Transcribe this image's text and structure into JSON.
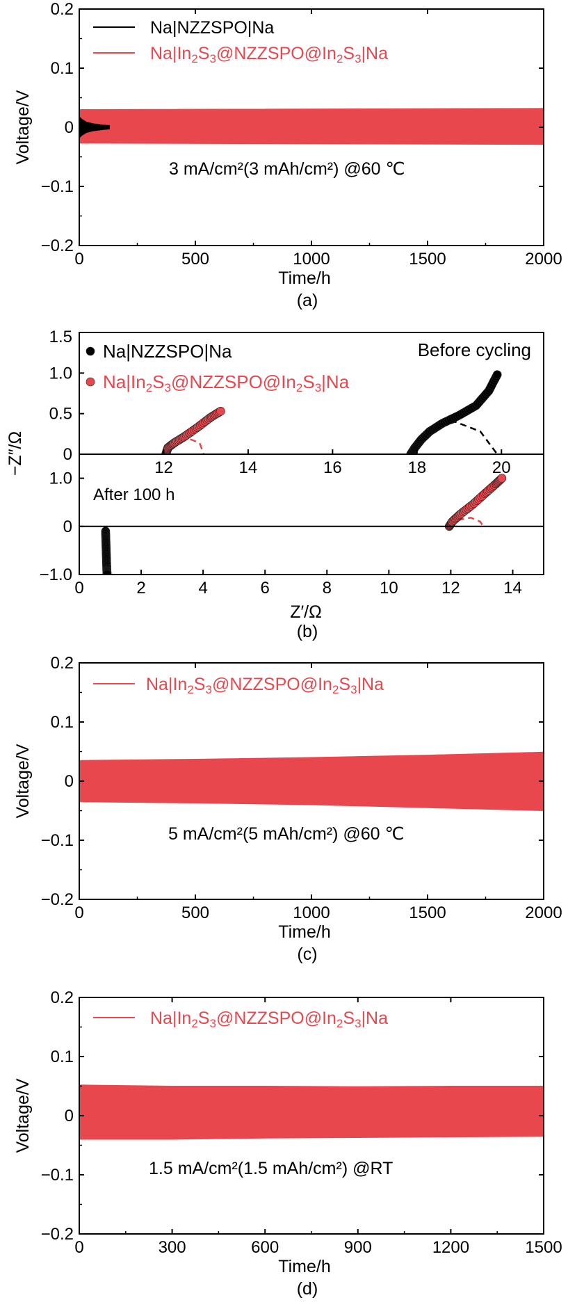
{
  "colors": {
    "black_series": "#000000",
    "red_series": "#e8474d",
    "axis": "#000000"
  },
  "chart_data": [
    {
      "panel": "(a)",
      "type": "line",
      "xlabel": "Time/h",
      "ylabel": "Voltage/V",
      "xlim": [
        0,
        2000
      ],
      "ylim": [
        -0.2,
        0.2
      ],
      "xticks": [
        0,
        500,
        1000,
        1500,
        2000
      ],
      "yticks": [
        0.2,
        0.1,
        0,
        -0.1,
        -0.2
      ],
      "ytick_labels": [
        "0.2",
        "0.1",
        "0",
        "−0.1",
        "−0.2"
      ],
      "annotation": "3 mA/cm²(3 mAh/cm²) @60 ℃",
      "series": [
        {
          "name": "Na|NZZSPO|Na",
          "color": "#000000",
          "envelope": {
            "t": [
              0,
              10,
              30,
              60,
              100,
              130
            ],
            "upper": [
              0.018,
              0.014,
              0.009,
              0.006,
              0.004,
              0.003
            ],
            "lower": [
              -0.018,
              -0.014,
              -0.009,
              -0.006,
              -0.004,
              -0.003
            ]
          }
        },
        {
          "name": "Na|In₂S₃@NZZSPO@In₂S₃|Na",
          "color": "#e8474d",
          "envelope": {
            "t": [
              0,
              2000
            ],
            "upper": [
              0.03,
              0.032
            ],
            "lower": [
              -0.027,
              -0.029
            ]
          }
        }
      ]
    },
    {
      "panel": "(b)",
      "type": "scatter",
      "xlabel": "Z′/Ω",
      "ylabel": "−Z″/Ω",
      "top": {
        "label": "Before cycling",
        "xlim": [
          10,
          21
        ],
        "ylim": [
          0,
          1.5
        ],
        "xticks": [
          12,
          14,
          16,
          18,
          20
        ],
        "yticks": [
          1.5,
          1.0,
          0.5,
          0
        ],
        "ytick_labels": [
          "1.5",
          "1.0",
          "0.5",
          "0"
        ],
        "series": [
          {
            "name": "Na|NZZSPO|Na",
            "color": "#000000",
            "points": [
              [
                17.85,
                0.0
              ],
              [
                17.95,
                0.08
              ],
              [
                18.1,
                0.18
              ],
              [
                18.3,
                0.28
              ],
              [
                18.6,
                0.38
              ],
              [
                19.0,
                0.48
              ],
              [
                19.4,
                0.6
              ],
              [
                19.7,
                0.78
              ],
              [
                19.9,
                0.98
              ]
            ],
            "fit": [
              [
                17.85,
                0.0
              ],
              [
                18.3,
                0.28
              ],
              [
                18.9,
                0.4
              ],
              [
                19.5,
                0.28
              ],
              [
                19.9,
                0.0
              ]
            ]
          },
          {
            "name": "Na|In₂S₃@NZZSPO@In₂S₃|Na",
            "color": "#e8474d",
            "points": [
              [
                12.05,
                0.0
              ],
              [
                12.1,
                0.08
              ],
              [
                12.25,
                0.14
              ],
              [
                12.5,
                0.22
              ],
              [
                12.8,
                0.33
              ],
              [
                13.1,
                0.45
              ],
              [
                13.35,
                0.53
              ]
            ],
            "fit": [
              [
                12.05,
                0.0
              ],
              [
                12.3,
                0.16
              ],
              [
                12.55,
                0.2
              ],
              [
                12.85,
                0.14
              ],
              [
                12.95,
                0.0
              ]
            ]
          }
        ]
      },
      "bottom": {
        "label": "After 100 h",
        "xlim": [
          0,
          15
        ],
        "ylim": [
          -1.0,
          1.5
        ],
        "xticks": [
          0,
          2,
          4,
          6,
          8,
          10,
          12,
          14
        ],
        "yticks": [
          1.0,
          0,
          -1.0
        ],
        "ytick_labels": [
          "1.0",
          "0",
          "−1.0"
        ],
        "series": [
          {
            "name": "Na|NZZSPO|Na",
            "color": "#000000",
            "points": [
              [
                0.85,
                -0.1
              ],
              [
                0.86,
                -0.3
              ],
              [
                0.87,
                -0.5
              ],
              [
                0.88,
                -0.7
              ],
              [
                0.89,
                -0.9
              ],
              [
                0.9,
                -1.0
              ]
            ],
            "fit": []
          },
          {
            "name": "Na|In₂S₃@NZZSPO@In₂S₃|Na",
            "color": "#e8474d",
            "points": [
              [
                11.95,
                0.0
              ],
              [
                12.05,
                0.1
              ],
              [
                12.3,
                0.25
              ],
              [
                12.7,
                0.45
              ],
              [
                13.1,
                0.68
              ],
              [
                13.45,
                0.88
              ],
              [
                13.65,
                1.0
              ]
            ],
            "fit": [
              [
                11.95,
                0.0
              ],
              [
                12.3,
                0.14
              ],
              [
                12.65,
                0.18
              ],
              [
                12.95,
                0.1
              ],
              [
                13.05,
                0.0
              ]
            ]
          }
        ]
      }
    },
    {
      "panel": "(c)",
      "type": "line",
      "xlabel": "Time/h",
      "ylabel": "Voltage/V",
      "xlim": [
        0,
        2000
      ],
      "ylim": [
        -0.2,
        0.2
      ],
      "xticks": [
        0,
        500,
        1000,
        1500,
        2000
      ],
      "yticks": [
        0.2,
        0.1,
        0,
        -0.1,
        -0.2
      ],
      "ytick_labels": [
        "0.2",
        "0.1",
        "0",
        "−0.1",
        "−0.2"
      ],
      "annotation": "5 mA/cm²(5 mAh/cm²) @60 ℃",
      "series": [
        {
          "name": "Na|In₂S₃@NZZSPO@In₂S₃|Na",
          "color": "#e8474d",
          "envelope": {
            "t": [
              0,
              500,
              1000,
              1500,
              2000
            ],
            "upper": [
              0.035,
              0.037,
              0.04,
              0.044,
              0.049
            ],
            "lower": [
              -0.035,
              -0.037,
              -0.04,
              -0.045,
              -0.05
            ]
          }
        }
      ]
    },
    {
      "panel": "(d)",
      "type": "line",
      "xlabel": "Time/h",
      "ylabel": "Voltage/V",
      "xlim": [
        0,
        1500
      ],
      "ylim": [
        -0.2,
        0.2
      ],
      "xticks": [
        0,
        300,
        600,
        900,
        1200,
        1500
      ],
      "yticks": [
        0.2,
        0.1,
        0,
        -0.1,
        -0.2
      ],
      "ytick_labels": [
        "0.2",
        "0.1",
        "0",
        "−0.1",
        "−0.2"
      ],
      "annotation": "1.5 mA/cm²(1.5 mAh/cm²)    @RT",
      "series": [
        {
          "name": "Na|In₂S₃@NZZSPO@In₂S₃|Na",
          "color": "#e8474d",
          "envelope": {
            "t": [
              0,
              300,
              600,
              900,
              1200,
              1500
            ],
            "upper": [
              0.052,
              0.05,
              0.05,
              0.049,
              0.05,
              0.05
            ],
            "lower": [
              -0.04,
              -0.04,
              -0.038,
              -0.037,
              -0.036,
              -0.035
            ]
          }
        }
      ]
    }
  ]
}
